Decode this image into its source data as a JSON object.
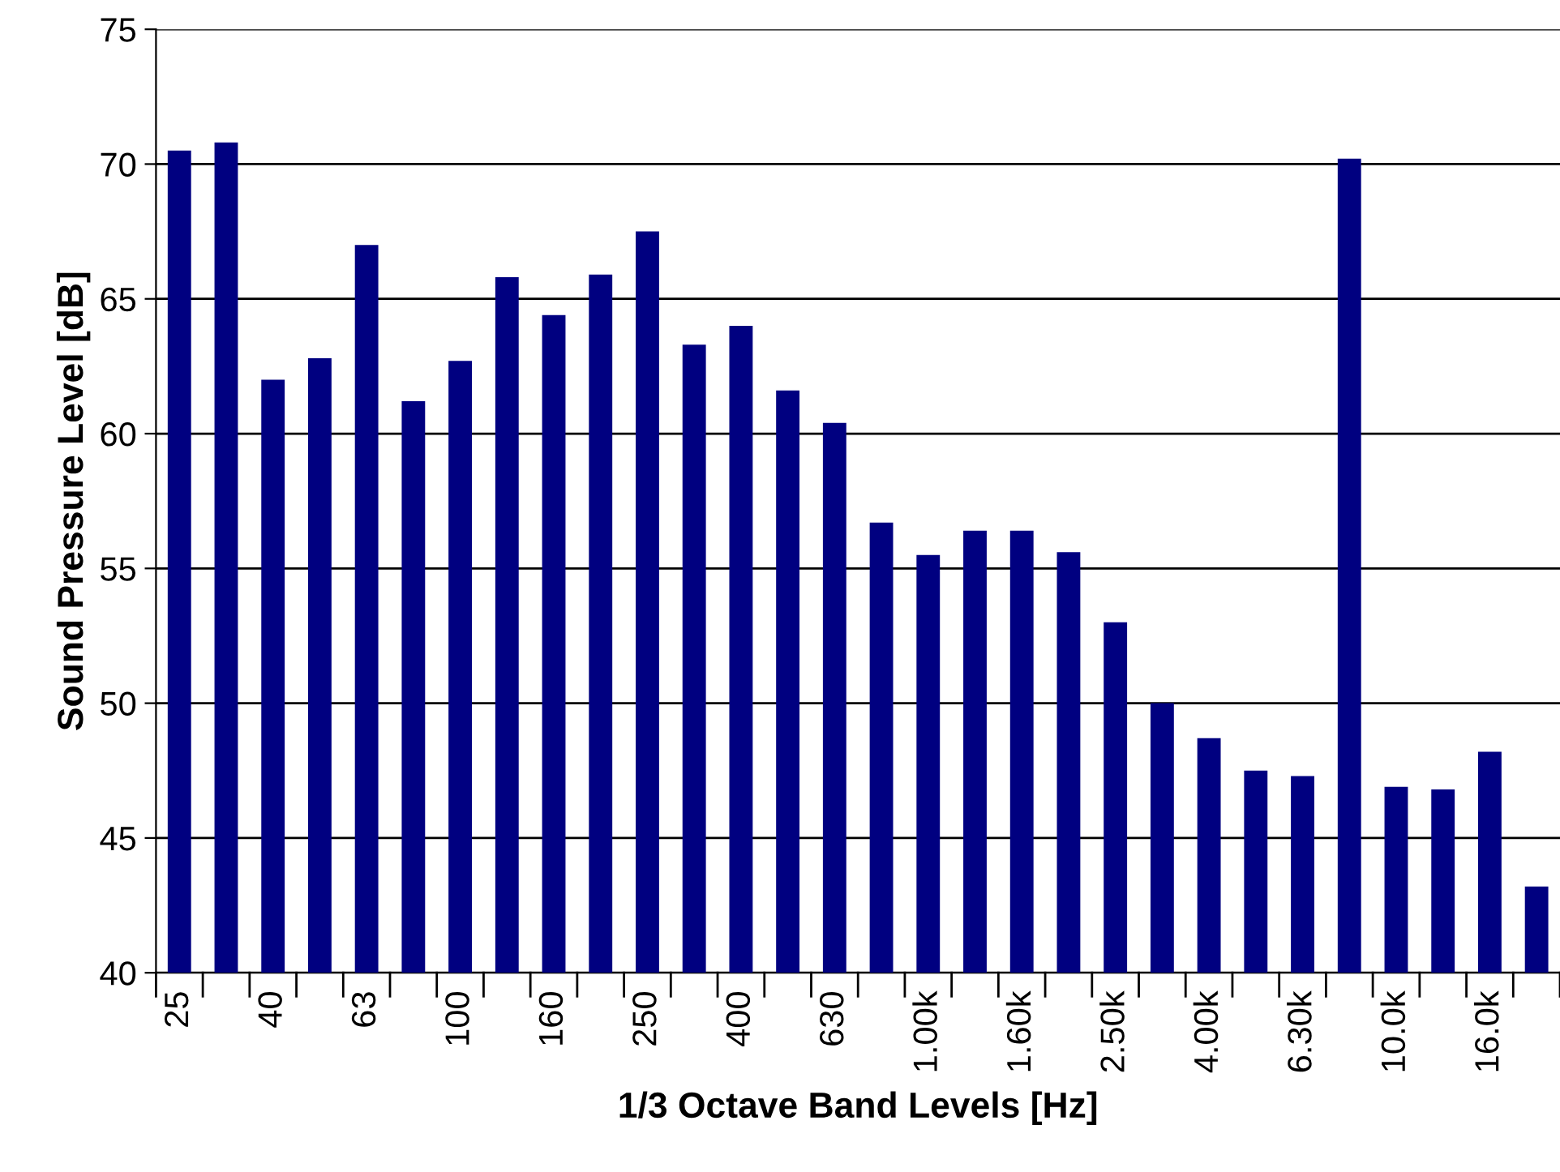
{
  "chart_data": {
    "type": "bar",
    "xlabel": "1/3 Octave Band Levels [Hz]",
    "ylabel": "Sound Pressure Level [dB]",
    "categories": [
      "25",
      null,
      "40",
      null,
      "63",
      null,
      "100",
      null,
      "160",
      null,
      "250",
      null,
      "400",
      null,
      "630",
      null,
      "1.00k",
      null,
      "1.60k",
      null,
      "2.50k",
      null,
      "4.00k",
      null,
      "6.30k",
      null,
      "10.0k",
      null,
      "16.0k",
      null
    ],
    "values": [
      70.5,
      70.8,
      62.0,
      62.8,
      67.0,
      61.2,
      62.7,
      65.8,
      64.4,
      65.9,
      67.5,
      63.3,
      64.0,
      61.6,
      60.4,
      56.7,
      55.5,
      56.4,
      56.4,
      55.6,
      53.0,
      50.0,
      48.7,
      47.5,
      47.3,
      70.2,
      46.9,
      46.8,
      48.2,
      43.2
    ],
    "color": "#000080",
    "ylim": [
      40,
      75
    ],
    "yticks": [
      40,
      45,
      50,
      55,
      60,
      65,
      70,
      75
    ],
    "grid": "y",
    "legend": false
  }
}
